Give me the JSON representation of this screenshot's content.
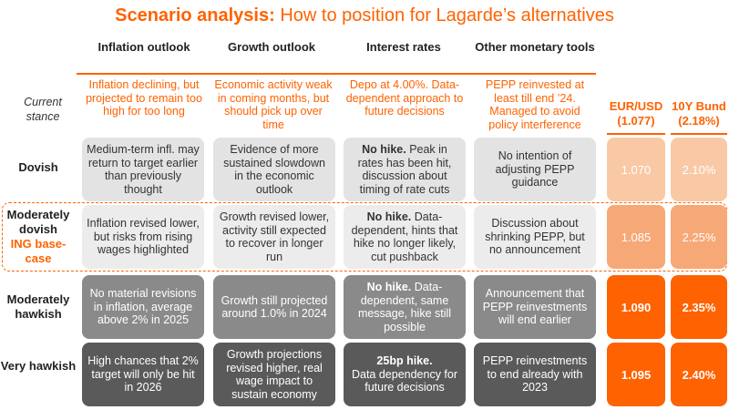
{
  "title": {
    "bold": "Scenario analysis:",
    "rest": "How to position for Lagarde’s alternatives"
  },
  "columns": [
    "Inflation outlook",
    "Growth outlook",
    "Interest rates",
    "Other monetary tools"
  ],
  "current_stance": {
    "label": "Current stance",
    "values": [
      "Inflation declining, but projected to remain too high for too long",
      "Economic activity weak in coming months, but should pick up over time",
      "Depo at 4.00%. Data-dependent approach to future decisions",
      "PEPP reinvested at least till end ’24. Managed to avoid policy interference"
    ]
  },
  "market_headers": [
    {
      "name": "EUR/USD",
      "value": "(1.077)"
    },
    {
      "name": "10Y Bund",
      "value": "(2.18%)"
    }
  ],
  "rows": [
    {
      "label": "Dovish",
      "cells": [
        {
          "bold": "",
          "text": "Medium-term infl. may return to target earlier than previously thought"
        },
        {
          "bold": "",
          "text": "Evidence of more sustained slowdown in the economic outlook"
        },
        {
          "bold": "No hike.",
          "text": " Peak in rates has been hit, discussion about timing of rate cuts"
        },
        {
          "bold": "",
          "text": "No intention of adjusting PEPP guidance"
        }
      ],
      "eurusd": "1.070",
      "bund": "2.10%"
    },
    {
      "label": "Moderately dovish",
      "label_highlight": "ING base-case",
      "cells": [
        {
          "bold": "",
          "text": "Inflation revised lower, but risks from rising wages highlighted"
        },
        {
          "bold": "",
          "text": "Growth revised lower, activity still expected to recover in longer run"
        },
        {
          "bold": "No hike.",
          "text": " Data-dependent, hints that hike no longer likely, cut pushback"
        },
        {
          "bold": "",
          "text": "Discussion about shrinking PEPP, but no announcement"
        }
      ],
      "eurusd": "1.085",
      "bund": "2.25%"
    },
    {
      "label": "Moderately hawkish",
      "cells": [
        {
          "bold": "",
          "text": "No material revisions in inflation, average above 2% in 2025"
        },
        {
          "bold": "",
          "text": "Growth still projected around 1.0% in 2024"
        },
        {
          "bold": "No hike.",
          "text": " Data-dependent, same message, hike still possible"
        },
        {
          "bold": "",
          "text": "Announcement that PEPP reinvestments will end earlier"
        }
      ],
      "eurusd": "1.090",
      "bund": "2.35%"
    },
    {
      "label": "Very hawkish",
      "cells": [
        {
          "bold": "",
          "text": "High chances that 2% target will only be hit in 2026"
        },
        {
          "bold": "",
          "text": "Growth projections revised higher, real wage impact to sustain economy"
        },
        {
          "bold": "25bp hike.",
          "text": "Data dependency for future decisions",
          "break": true
        },
        {
          "bold": "",
          "text": "PEPP reinvestments to end already with 2023"
        }
      ],
      "eurusd": "1.095",
      "bund": "2.40%"
    }
  ],
  "colors": {
    "accent": "#ff6200",
    "dovish_market": "#f9c9a6",
    "mod_dovish_market": "#f7a877",
    "hawkish_market": "#ff6200"
  }
}
